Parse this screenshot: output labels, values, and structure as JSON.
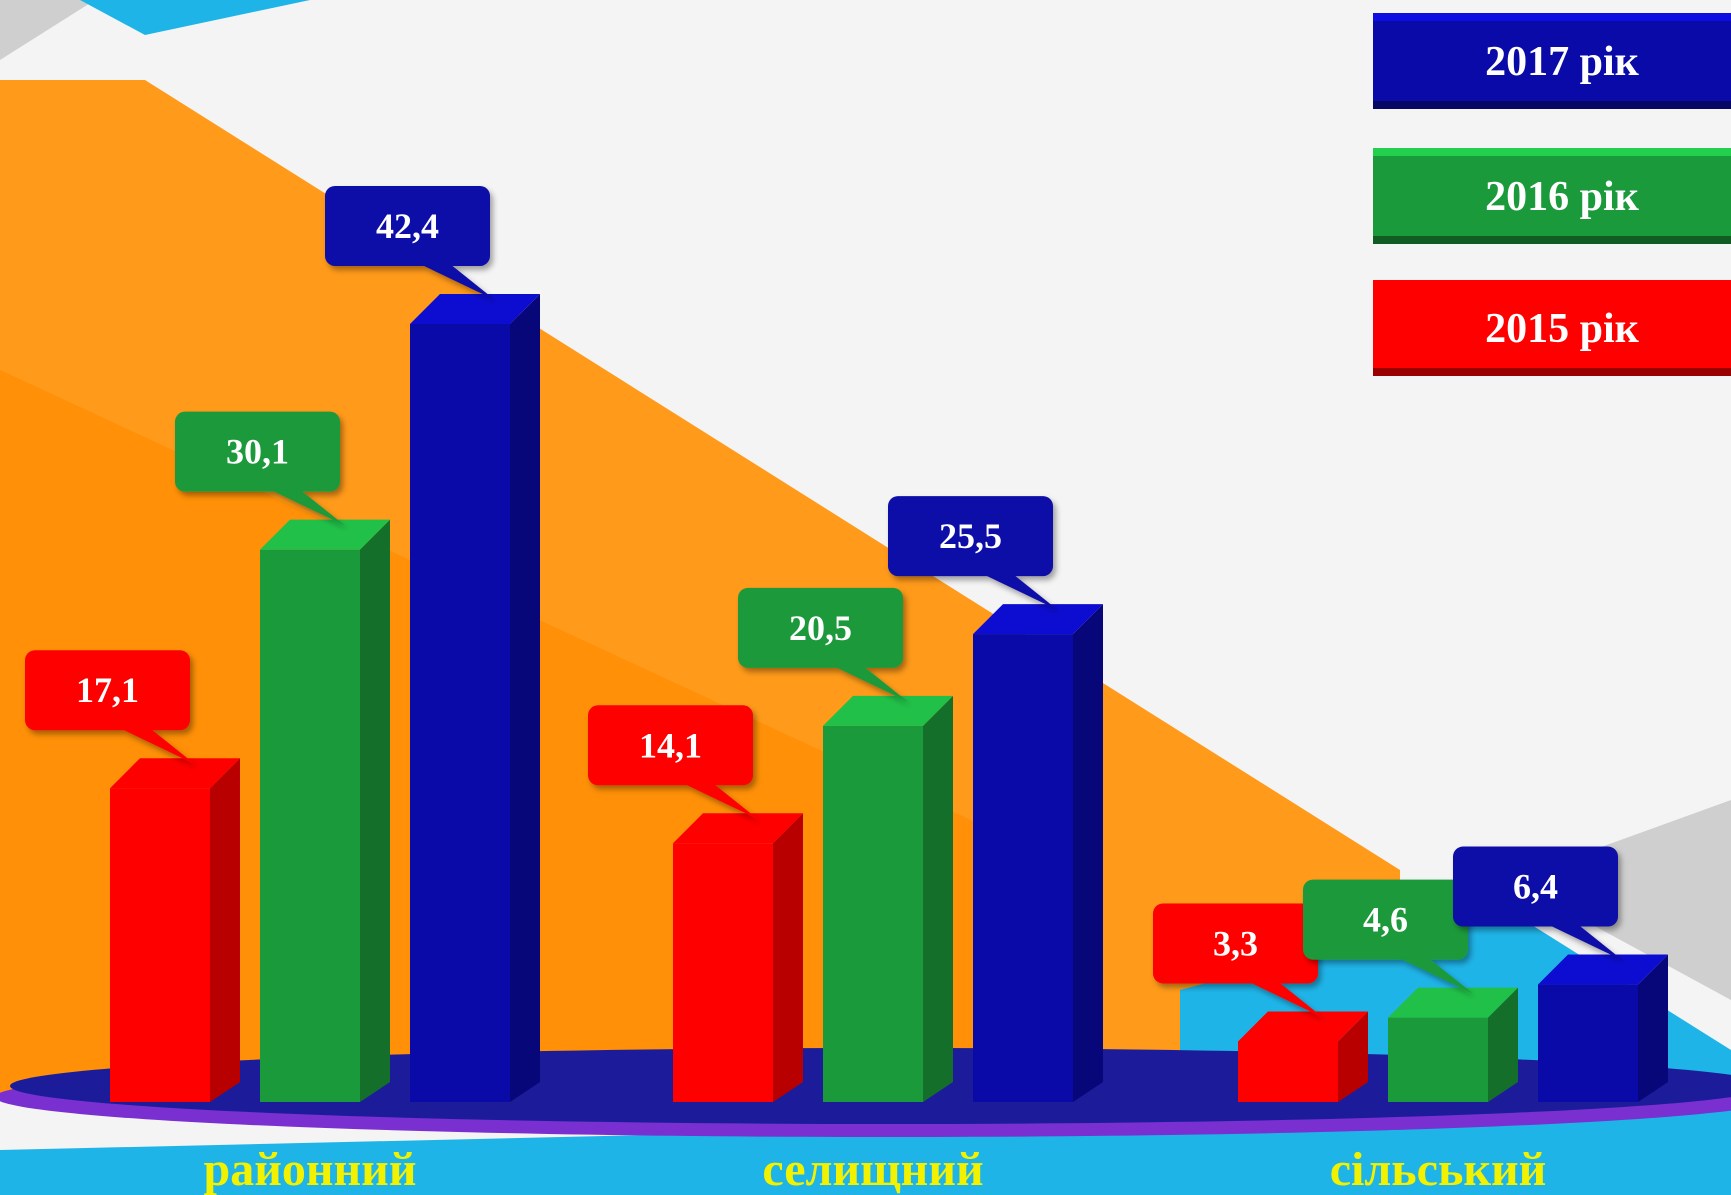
{
  "chart_data": {
    "type": "bar",
    "categories": [
      "районний",
      "селищний",
      "сільський"
    ],
    "series": [
      {
        "name": "2015 рік",
        "values": [
          "17,1",
          "14,1",
          "3,3"
        ],
        "color": "#ff0000"
      },
      {
        "name": "2016 рік",
        "values": [
          "30,1",
          "20,5",
          "4,6"
        ],
        "color": "#1a9a3a"
      },
      {
        "name": "2017 рік",
        "values": [
          "42,4",
          "25,5",
          "6,4"
        ],
        "color": "#0a0aa8"
      }
    ],
    "legend_order": [
      "2017 рік",
      "2016 рік",
      "2015 рік"
    ],
    "legend_position": "top-right",
    "ylim": [
      0,
      45
    ],
    "grid": false,
    "category_label_color": "#f2f200"
  },
  "colors": {
    "orange": "#ff9a1a",
    "cyan": "#1fb4e8",
    "gray": "#cfcfcf",
    "platform": "#1c1c9a",
    "platform_edge": "#7a2fd0"
  }
}
